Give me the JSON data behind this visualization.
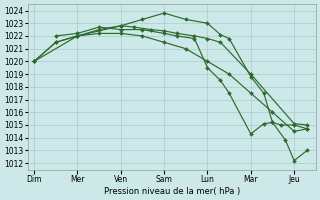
{
  "line_color": "#2d6a2d",
  "bg_color": "#cce8e8",
  "grid_color": "#aacccc",
  "xlabel": "Pression niveau de la mer( hPa )",
  "ylim": [
    1011.5,
    1024.5
  ],
  "yticks": [
    1012,
    1013,
    1014,
    1015,
    1016,
    1017,
    1018,
    1019,
    1020,
    1021,
    1022,
    1023,
    1024
  ],
  "xtick_labels": [
    "Dim",
    "Mer",
    "Ven",
    "Sam",
    "Lun",
    "Mar",
    "Jeu"
  ],
  "xtick_positions": [
    0,
    1,
    2,
    3,
    4,
    5,
    6
  ],
  "xlim": [
    -0.15,
    6.5
  ],
  "series": [
    {
      "x": [
        0,
        0.5,
        1.0,
        1.5,
        2.0,
        2.3,
        2.7,
        3.0,
        3.3,
        3.7,
        4.0,
        4.3,
        5.0,
        6.0,
        6.3
      ],
      "y": [
        1020.0,
        1021.5,
        1022.0,
        1022.5,
        1022.8,
        1022.7,
        1022.5,
        1022.4,
        1022.2,
        1022.0,
        1021.8,
        1021.5,
        1019.0,
        1015.1,
        1015.0
      ]
    },
    {
      "x": [
        0,
        0.5,
        1.0,
        1.5,
        2.0,
        2.5,
        3.0,
        3.5,
        4.0,
        4.5,
        5.0,
        5.5,
        6.0,
        6.3
      ],
      "y": [
        1020.0,
        1021.5,
        1022.0,
        1022.2,
        1022.2,
        1022.0,
        1021.5,
        1021.0,
        1020.0,
        1019.0,
        1017.5,
        1016.0,
        1014.5,
        1014.7
      ]
    },
    {
      "x": [
        0,
        1.0,
        2.0,
        2.5,
        3.0,
        3.5,
        4.0,
        4.3,
        4.5,
        5.0,
        5.3,
        5.5,
        5.8,
        6.0,
        6.3
      ],
      "y": [
        1020.0,
        1022.0,
        1022.8,
        1023.3,
        1023.8,
        1023.3,
        1023.0,
        1022.1,
        1021.8,
        1018.8,
        1017.5,
        1015.2,
        1013.8,
        1012.2,
        1013.0
      ]
    },
    {
      "x": [
        0.5,
        1.0,
        1.5,
        2.0,
        2.5,
        3.0,
        3.3,
        3.7,
        4.0,
        4.3,
        4.5,
        5.0,
        5.3,
        5.5,
        5.7,
        6.0,
        6.3
      ],
      "y": [
        1022.0,
        1022.2,
        1022.7,
        1022.5,
        1022.5,
        1022.2,
        1022.0,
        1021.8,
        1019.5,
        1018.5,
        1017.5,
        1014.3,
        1015.1,
        1015.2,
        1015.0,
        1015.0,
        1014.7
      ]
    }
  ],
  "marker_size": 2.0,
  "line_width": 0.85,
  "marker": "D"
}
